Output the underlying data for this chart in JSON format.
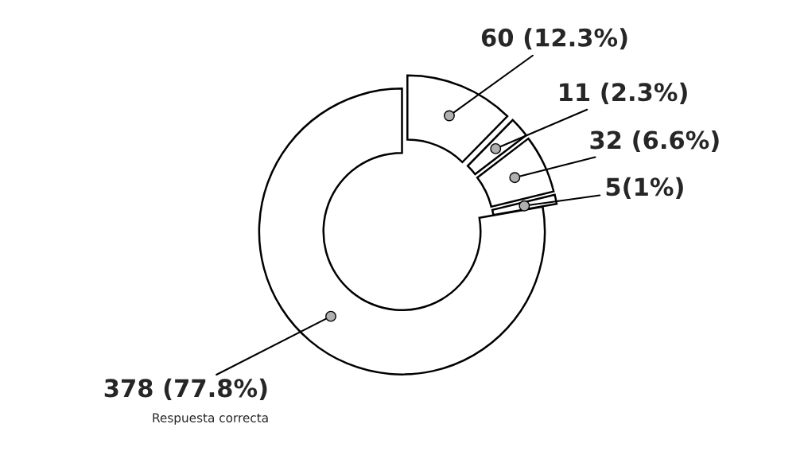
{
  "chart_data": {
    "type": "donut",
    "categories": [
      "Respuesta correcta",
      null,
      null,
      null,
      null
    ],
    "values": [
      378,
      5,
      32,
      11,
      60
    ],
    "value_labels": [
      "378 (77.8%)",
      "5(1%)",
      "32 (6.6%)",
      "11 (2.3%)",
      "60 (12.3%)"
    ],
    "colors": [
      "#ffffff",
      "#ffffff",
      "#ffffff",
      "#ffffff",
      "#ffffff"
    ],
    "legend": false
  }
}
